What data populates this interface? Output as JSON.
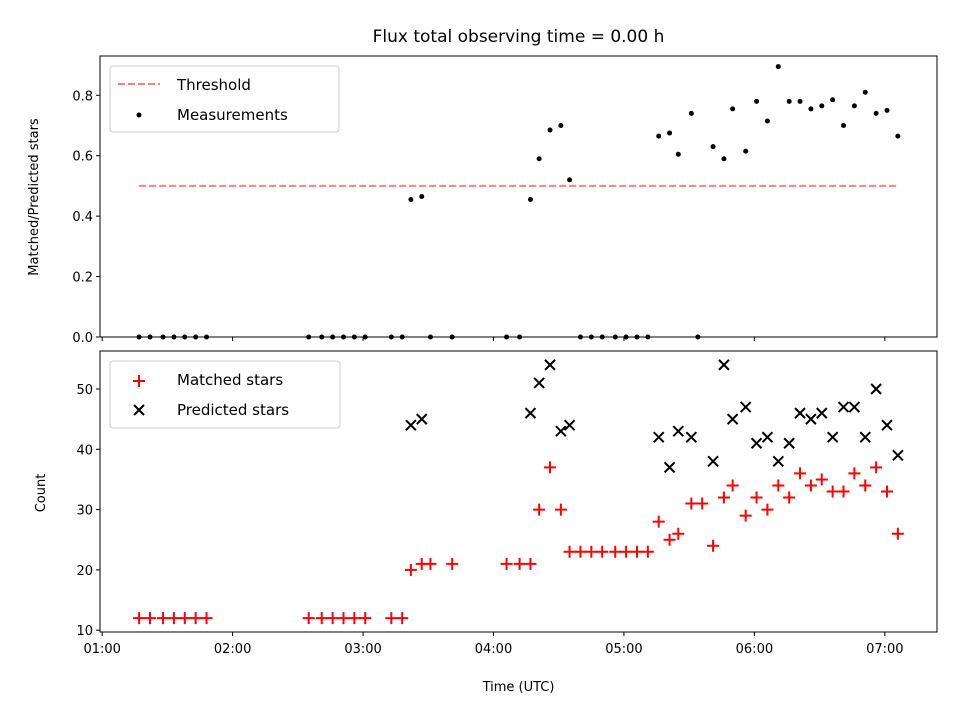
{
  "title": "Flux total observing time = 0.00 h",
  "colors": {
    "threshold": "#ff7f7f",
    "measurement": "#000000",
    "matched": "#ff0000",
    "predicted": "#000000"
  },
  "chart_data": [
    {
      "type": "scatter",
      "ylabel": "Matched/Predicted stars",
      "xlim": [
        "00:59",
        "07:24"
      ],
      "ylim": [
        0,
        0.93
      ],
      "yticks": [
        "0.0",
        "0.2",
        "0.4",
        "0.6",
        "0.8"
      ],
      "legend": {
        "position": "top-left",
        "entries": [
          "Threshold",
          "Measurements"
        ]
      },
      "threshold": {
        "name": "Threshold",
        "style": "dashed",
        "value": 0.5,
        "x_range": [
          "01:17",
          "07:06"
        ]
      },
      "series": [
        {
          "name": "Measurements",
          "points": [
            [
              "01:17",
              0
            ],
            [
              "01:22",
              0
            ],
            [
              "01:28",
              0
            ],
            [
              "01:33",
              0
            ],
            [
              "01:38",
              0
            ],
            [
              "01:43",
              0
            ],
            [
              "01:48",
              0
            ],
            [
              "02:35",
              0
            ],
            [
              "02:41",
              0
            ],
            [
              "02:46",
              0
            ],
            [
              "02:51",
              0
            ],
            [
              "02:56",
              0
            ],
            [
              "03:01",
              0
            ],
            [
              "03:13",
              0
            ],
            [
              "03:18",
              0
            ],
            [
              "03:22",
              0.455
            ],
            [
              "03:27",
              0.465
            ],
            [
              "03:31",
              0
            ],
            [
              "03:41",
              0
            ],
            [
              "04:06",
              0
            ],
            [
              "04:12",
              0
            ],
            [
              "04:17",
              0.455
            ],
            [
              "04:21",
              0.59
            ],
            [
              "04:26",
              0.685
            ],
            [
              "04:31",
              0.7
            ],
            [
              "04:35",
              0.52
            ],
            [
              "04:40",
              0
            ],
            [
              "04:45",
              0
            ],
            [
              "04:50",
              0
            ],
            [
              "04:56",
              0
            ],
            [
              "05:01",
              0
            ],
            [
              "05:06",
              0
            ],
            [
              "05:11",
              0
            ],
            [
              "05:16",
              0.665
            ],
            [
              "05:21",
              0.675
            ],
            [
              "05:25",
              0.605
            ],
            [
              "05:31",
              0.74
            ],
            [
              "05:34",
              0
            ],
            [
              "05:41",
              0.63
            ],
            [
              "05:46",
              0.59
            ],
            [
              "05:50",
              0.755
            ],
            [
              "05:56",
              0.615
            ],
            [
              "06:01",
              0.78
            ],
            [
              "06:06",
              0.715
            ],
            [
              "06:11",
              0.895
            ],
            [
              "06:16",
              0.78
            ],
            [
              "06:21",
              0.78
            ],
            [
              "06:26",
              0.755
            ],
            [
              "06:31",
              0.765
            ],
            [
              "06:36",
              0.785
            ],
            [
              "06:41",
              0.7
            ],
            [
              "06:46",
              0.765
            ],
            [
              "06:51",
              0.81
            ],
            [
              "06:56",
              0.74
            ],
            [
              "07:01",
              0.75
            ],
            [
              "07:06",
              0.665
            ]
          ]
        }
      ]
    },
    {
      "type": "scatter",
      "xlabel": "Time (UTC)",
      "ylabel": "Count",
      "xlim": [
        "00:59",
        "07:24"
      ],
      "ylim": [
        9.7,
        56.3
      ],
      "xticks": [
        "01:00",
        "02:00",
        "03:00",
        "04:00",
        "05:00",
        "06:00",
        "07:00"
      ],
      "yticks": [
        "10",
        "20",
        "30",
        "40",
        "50"
      ],
      "legend": {
        "position": "top-left",
        "entries": [
          "Matched stars",
          "Predicted stars"
        ]
      },
      "series": [
        {
          "name": "Matched stars",
          "points": [
            [
              "01:17",
              12
            ],
            [
              "01:22",
              12
            ],
            [
              "01:28",
              12
            ],
            [
              "01:33",
              12
            ],
            [
              "01:38",
              12
            ],
            [
              "01:43",
              12
            ],
            [
              "01:48",
              12
            ],
            [
              "02:35",
              12
            ],
            [
              "02:41",
              12
            ],
            [
              "02:46",
              12
            ],
            [
              "02:51",
              12
            ],
            [
              "02:56",
              12
            ],
            [
              "03:01",
              12
            ],
            [
              "03:13",
              12
            ],
            [
              "03:18",
              12
            ],
            [
              "03:22",
              20
            ],
            [
              "03:27",
              21
            ],
            [
              "03:31",
              21
            ],
            [
              "03:41",
              21
            ],
            [
              "04:06",
              21
            ],
            [
              "04:12",
              21
            ],
            [
              "04:17",
              21
            ],
            [
              "04:21",
              30
            ],
            [
              "04:26",
              37
            ],
            [
              "04:31",
              30
            ],
            [
              "04:35",
              23
            ],
            [
              "04:40",
              23
            ],
            [
              "04:45",
              23
            ],
            [
              "04:50",
              23
            ],
            [
              "04:56",
              23
            ],
            [
              "05:01",
              23
            ],
            [
              "05:06",
              23
            ],
            [
              "05:11",
              23
            ],
            [
              "05:16",
              28
            ],
            [
              "05:21",
              25
            ],
            [
              "05:25",
              26
            ],
            [
              "05:31",
              31
            ],
            [
              "05:36",
              31
            ],
            [
              "05:41",
              24
            ],
            [
              "05:46",
              32
            ],
            [
              "05:50",
              34
            ],
            [
              "05:56",
              29
            ],
            [
              "06:01",
              32
            ],
            [
              "06:06",
              30
            ],
            [
              "06:11",
              34
            ],
            [
              "06:16",
              32
            ],
            [
              "06:21",
              36
            ],
            [
              "06:26",
              34
            ],
            [
              "06:31",
              35
            ],
            [
              "06:36",
              33
            ],
            [
              "06:41",
              33
            ],
            [
              "06:46",
              36
            ],
            [
              "06:51",
              34
            ],
            [
              "06:56",
              37
            ],
            [
              "07:01",
              33
            ],
            [
              "07:06",
              26
            ]
          ]
        },
        {
          "name": "Predicted stars",
          "points": [
            [
              "03:22",
              44
            ],
            [
              "03:27",
              45
            ],
            [
              "04:17",
              46
            ],
            [
              "04:21",
              51
            ],
            [
              "04:26",
              54
            ],
            [
              "04:31",
              43
            ],
            [
              "04:35",
              44
            ],
            [
              "05:16",
              42
            ],
            [
              "05:21",
              37
            ],
            [
              "05:25",
              43
            ],
            [
              "05:31",
              42
            ],
            [
              "05:41",
              38
            ],
            [
              "05:46",
              54
            ],
            [
              "05:50",
              45
            ],
            [
              "05:56",
              47
            ],
            [
              "06:01",
              41
            ],
            [
              "06:06",
              42
            ],
            [
              "06:11",
              38
            ],
            [
              "06:16",
              41
            ],
            [
              "06:21",
              46
            ],
            [
              "06:26",
              45
            ],
            [
              "06:31",
              46
            ],
            [
              "06:36",
              42
            ],
            [
              "06:41",
              47
            ],
            [
              "06:46",
              47
            ],
            [
              "06:51",
              42
            ],
            [
              "06:56",
              50
            ],
            [
              "07:01",
              44
            ],
            [
              "07:06",
              39
            ]
          ]
        }
      ]
    }
  ]
}
